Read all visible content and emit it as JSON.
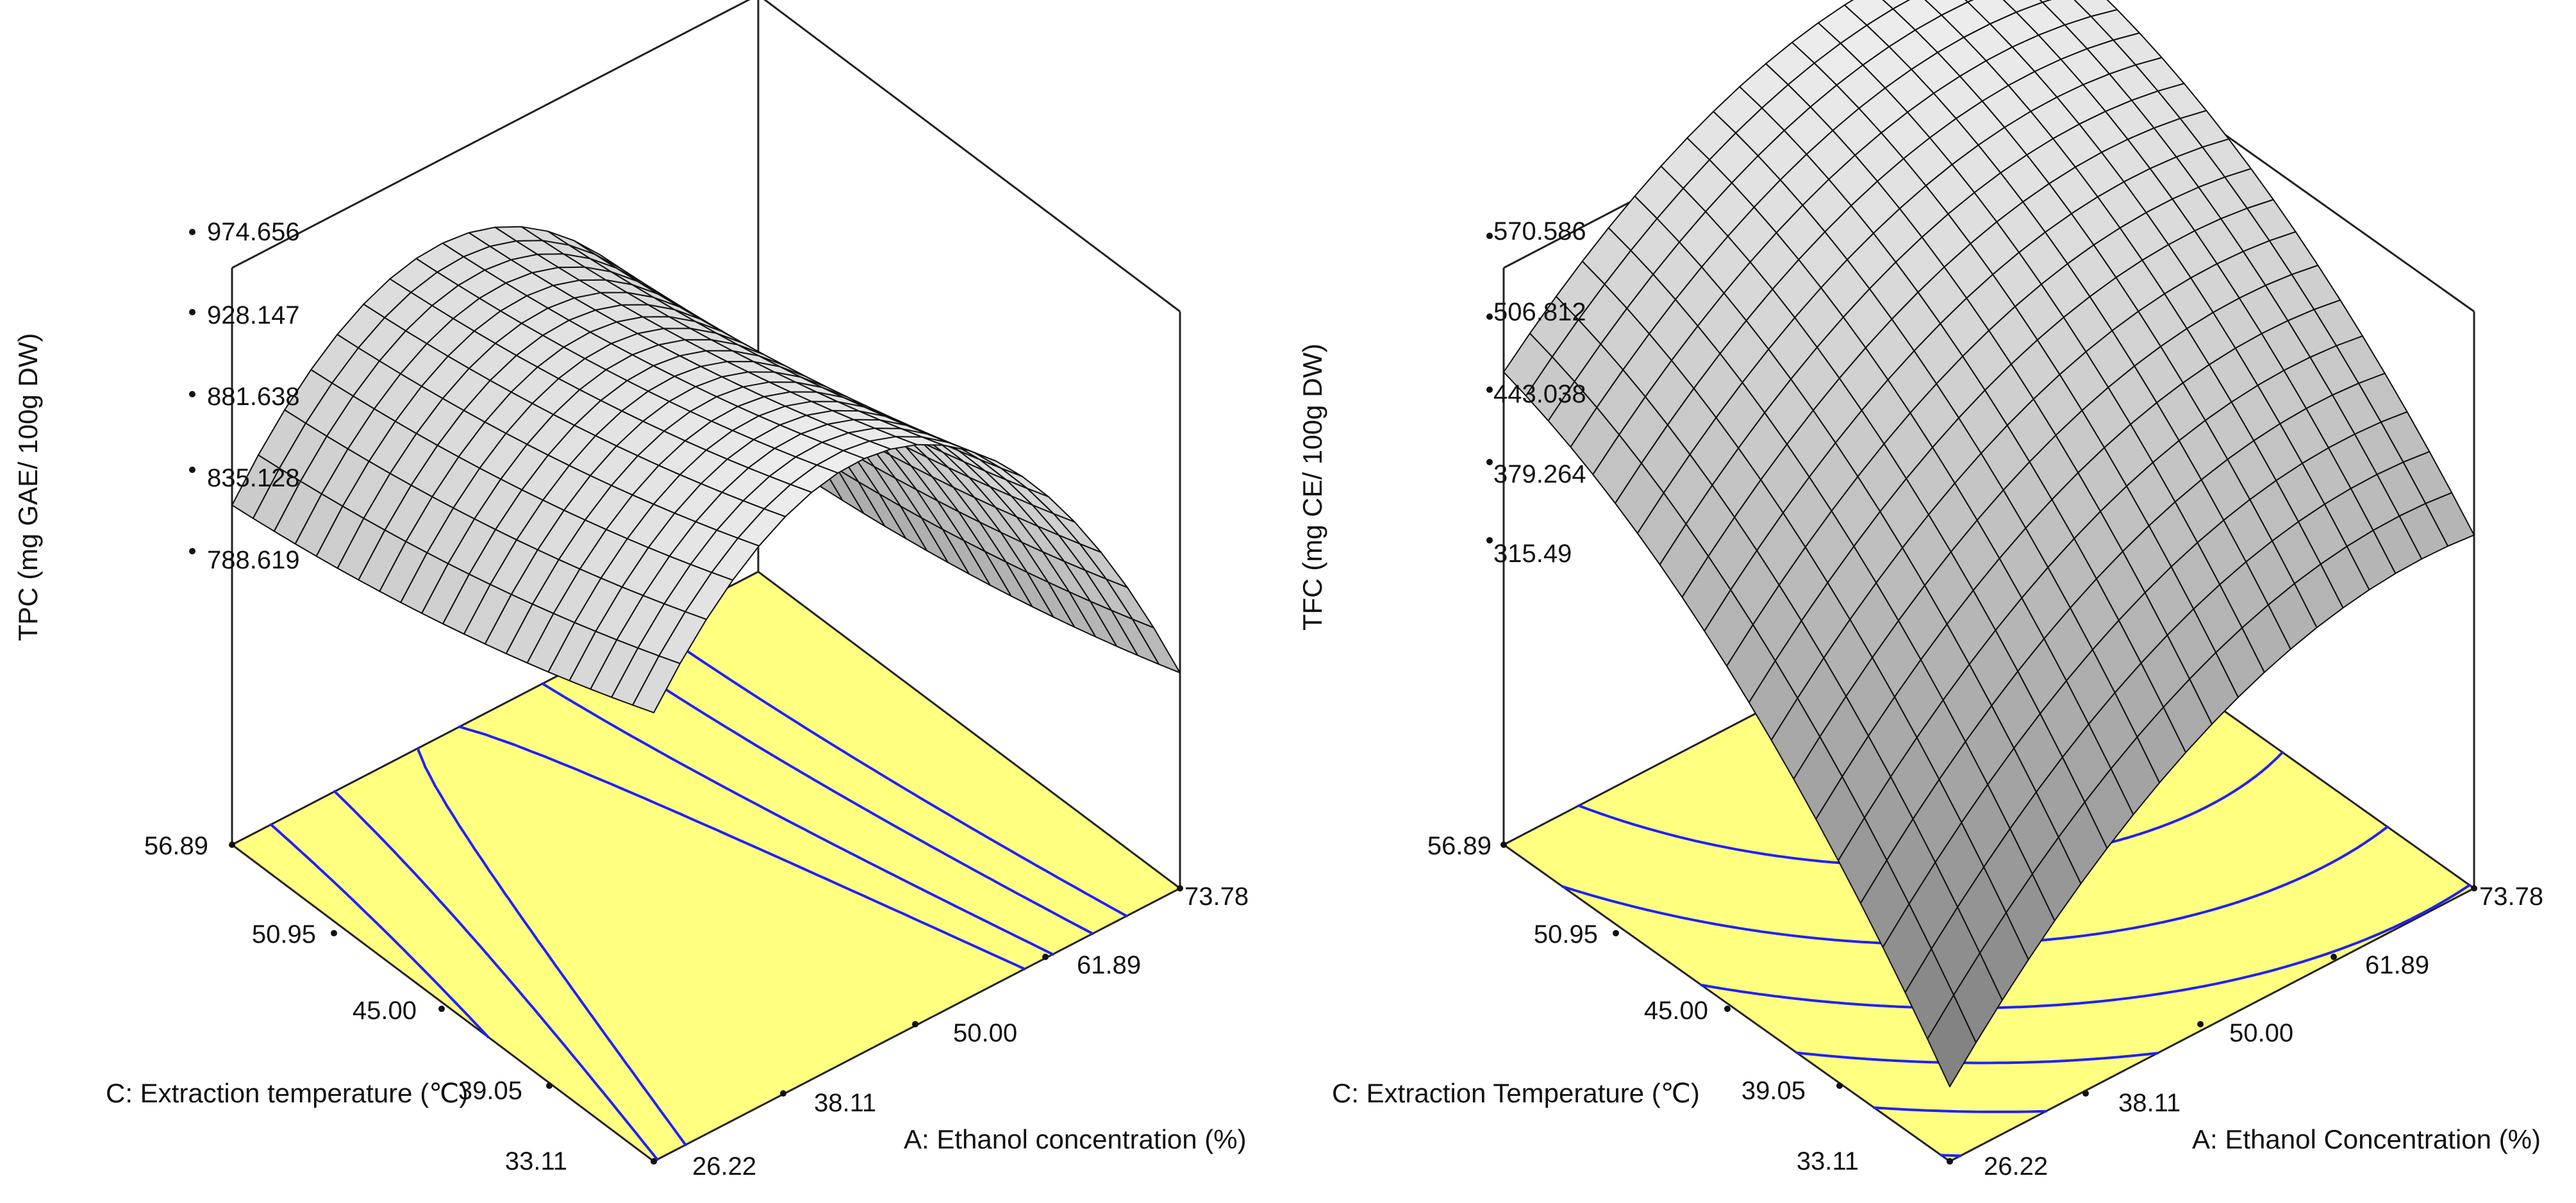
{
  "chart_data": [
    {
      "type": "surface",
      "id": "tpc",
      "zlabel": "TPC (mg GAE/ 100g DW)",
      "xlabel": "A: Ethanol concentration (%)",
      "ylabel": "C: Extraction temperature (℃)",
      "x_ticks": [
        "26.22",
        "38.11",
        "50.00",
        "61.89",
        "73.78"
      ],
      "y_ticks": [
        "33.11",
        "39.05",
        "45.00",
        "50.95",
        "56.89"
      ],
      "z_ticks": [
        "788.619",
        "835.128",
        "881.638",
        "928.147",
        "974.656"
      ],
      "xlim": [
        26.22,
        73.78
      ],
      "ylim": [
        33.11,
        56.89
      ],
      "zlim": [
        742.11,
        974.656
      ],
      "surface_colors": [
        "#eeeeee",
        "#a8a8a8"
      ],
      "floor_color": "#ffff80",
      "contour_color": "#2020ff",
      "model": {
        "intercept": 950.0,
        "a": -45.0,
        "c": -20.0,
        "ac": 2.0,
        "aa": -100.0,
        "cc": 6.0,
        "contours": [
          875,
          900,
          925,
          940
        ]
      }
    },
    {
      "type": "surface",
      "id": "tfc",
      "zlabel": "TFC (mg CE/ 100g DW)",
      "xlabel": "A: Ethanol Concentration (%)",
      "ylabel": "C: Extraction Temperature (℃)",
      "x_ticks": [
        "26.22",
        "38.11",
        "50.00",
        "61.89",
        "73.78"
      ],
      "y_ticks": [
        "33.11",
        "39.05",
        "45.00",
        "50.95",
        "56.89"
      ],
      "z_ticks": [
        "315.49",
        "379.264",
        "443.038",
        "506.812",
        "570.586"
      ],
      "xlim": [
        26.22,
        73.78
      ],
      "ylim": [
        33.11,
        56.89
      ],
      "zlim": [
        251.716,
        570.586
      ],
      "surface_colors": [
        "#eeeeee",
        "#7d7d7d"
      ],
      "floor_color": "#ffff80",
      "contour_color": "#2020ff",
      "model": {
        "intercept": 548.0,
        "a": 62.0,
        "c": 95.0,
        "ac": -15.0,
        "aa": -48.0,
        "cc": -35.0,
        "contours": [
          300,
          350,
          400,
          450,
          500,
          550
        ]
      }
    }
  ]
}
